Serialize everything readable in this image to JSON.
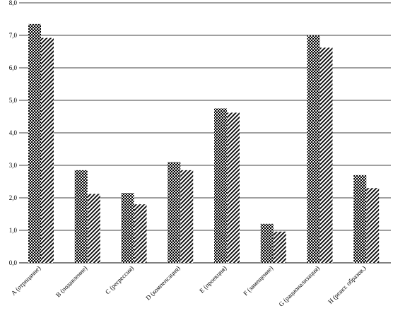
{
  "chart_data": {
    "type": "bar",
    "categories": [
      "A (отрицание)",
      "B (подавление)",
      "C (регрессия)",
      "D (компенсация)",
      "E (проекция)",
      "F (замещение)",
      "G (рационализация)",
      "H (реакт. образов.)"
    ],
    "series": [
      {
        "pattern": "dots",
        "values": [
          7.35,
          2.85,
          2.15,
          3.1,
          4.75,
          1.2,
          7.0,
          2.7
        ]
      },
      {
        "pattern": "diagonal-hatch",
        "values": [
          6.92,
          2.12,
          1.8,
          2.85,
          4.62,
          0.96,
          6.62,
          2.3
        ]
      }
    ],
    "y_ticks": [
      "0,0",
      "1,0",
      "2,0",
      "3,0",
      "4,0",
      "5,0",
      "6,0",
      "7,0",
      "8,0"
    ],
    "ylim": [
      0,
      8
    ],
    "grid": true,
    "colors": {
      "bar_fill": "#000000",
      "background": "#ffffff",
      "grid": "#000000"
    }
  }
}
